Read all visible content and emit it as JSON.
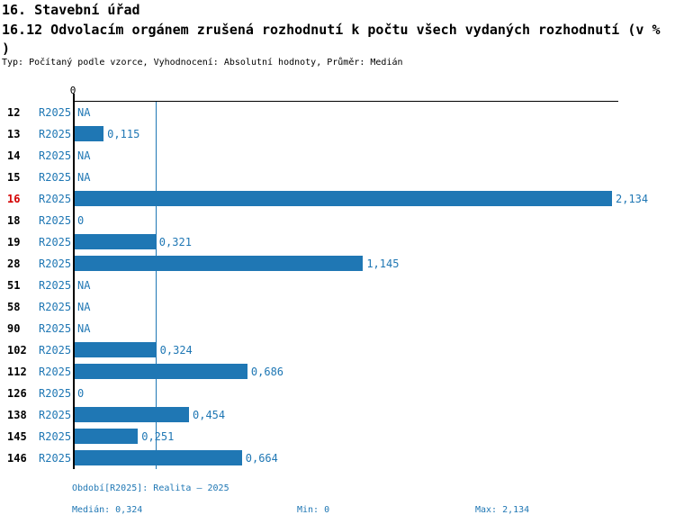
{
  "page": {
    "title": "16. Stavební úřad",
    "subtitle_line1": "16.12 Odvolacím orgánem zrušená rozhodnutí k počtu všech vydaných rozhodnutí (v %",
    "subtitle_line2": ")",
    "meta": "Typ: Počítaný podle vzorce, Vyhodnocení: Absolutní hodnoty, Průměr: Medián"
  },
  "chart_data": {
    "type": "bar",
    "orientation": "horizontal",
    "title": "16.12 Odvolacím orgánem zrušená rozhodnutí k počtu všech vydaných rozhodnutí (v %)",
    "categories": [
      "12",
      "13",
      "14",
      "15",
      "16",
      "18",
      "19",
      "28",
      "51",
      "58",
      "90",
      "102",
      "112",
      "126",
      "138",
      "145",
      "146"
    ],
    "series": [
      {
        "name": "R2025",
        "values": [
          null,
          0.115,
          null,
          null,
          2.134,
          0,
          0.321,
          1.145,
          null,
          null,
          null,
          0.324,
          0.686,
          0,
          0.454,
          0.251,
          0.664
        ]
      }
    ],
    "value_labels": [
      "NA",
      "0,115",
      "NA",
      "NA",
      "2,134",
      "0",
      "0,321",
      "1,145",
      "NA",
      "NA",
      "NA",
      "0,324",
      "0,686",
      "0",
      "0,454",
      "0,251",
      "0,664"
    ],
    "highlighted_category": "16",
    "x_axis_tick_label": "0",
    "xlim": [
      0,
      2.159
    ],
    "median": 0.324,
    "min": 0,
    "max": 2.134,
    "grid": false,
    "legend_position": "none",
    "bar_color": "#1f77b4",
    "highlight_color": "#d40000"
  },
  "footer": {
    "period": "Období[R2025]: Realita – 2025",
    "median": "Medián: 0,324",
    "min": "Min: 0",
    "max": "Max: 2,134"
  }
}
